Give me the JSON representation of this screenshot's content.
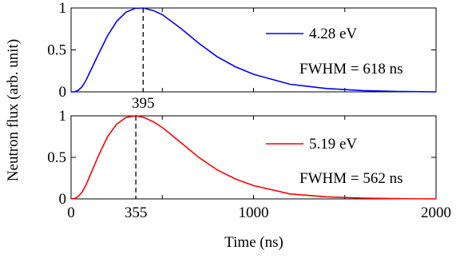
{
  "chart_data": [
    {
      "type": "line",
      "xlabel": "",
      "ylabel": "",
      "xlim": [
        0,
        2000
      ],
      "ylim": [
        0,
        1
      ],
      "x_ticks": [
        0,
        1000,
        2000
      ],
      "y_ticks": [
        "0",
        "0.5",
        "1"
      ],
      "peak_marker": {
        "x": 395,
        "label": "395"
      },
      "legend": {
        "placement": "center-right",
        "entry": "4.28 eV",
        "color": "#0000ff"
      },
      "annotation": "FWHM = 618 ns",
      "series": [
        {
          "name": "4.28 eV",
          "color": "#0000ff",
          "x": [
            0,
            20,
            40,
            60,
            80,
            100,
            150,
            200,
            250,
            300,
            350,
            395,
            450,
            500,
            600,
            700,
            800,
            900,
            1000,
            1200,
            1400,
            1600,
            1800,
            2000
          ],
          "y": [
            0,
            0,
            0.02,
            0.06,
            0.13,
            0.22,
            0.45,
            0.67,
            0.84,
            0.95,
            0.995,
            1.0,
            0.97,
            0.92,
            0.76,
            0.58,
            0.42,
            0.3,
            0.21,
            0.09,
            0.04,
            0.015,
            0.005,
            0.0
          ]
        }
      ]
    },
    {
      "type": "line",
      "xlabel": "Time (ns)",
      "ylabel": "Neutron flux (arb. unit)",
      "xlim": [
        0,
        2000
      ],
      "ylim": [
        0,
        1
      ],
      "x_ticks": [
        "0",
        "355",
        "1000",
        "2000"
      ],
      "y_ticks": [
        "0",
        "0.5",
        "1"
      ],
      "peak_marker": {
        "x": 355,
        "label": "355"
      },
      "legend": {
        "placement": "center-right",
        "entry": "5.19 eV",
        "color": "#ff0000"
      },
      "annotation": "FWHM = 562 ns",
      "series": [
        {
          "name": "5.19 eV",
          "color": "#ff0000",
          "x": [
            0,
            20,
            40,
            60,
            80,
            100,
            150,
            200,
            250,
            300,
            355,
            400,
            450,
            500,
            600,
            700,
            800,
            900,
            1000,
            1200,
            1400,
            1600,
            1800,
            2000
          ],
          "y": [
            0,
            0.005,
            0.03,
            0.08,
            0.16,
            0.26,
            0.52,
            0.75,
            0.9,
            0.98,
            1.0,
            0.98,
            0.93,
            0.86,
            0.68,
            0.5,
            0.35,
            0.24,
            0.16,
            0.06,
            0.025,
            0.01,
            0.003,
            0.0
          ]
        }
      ]
    }
  ]
}
